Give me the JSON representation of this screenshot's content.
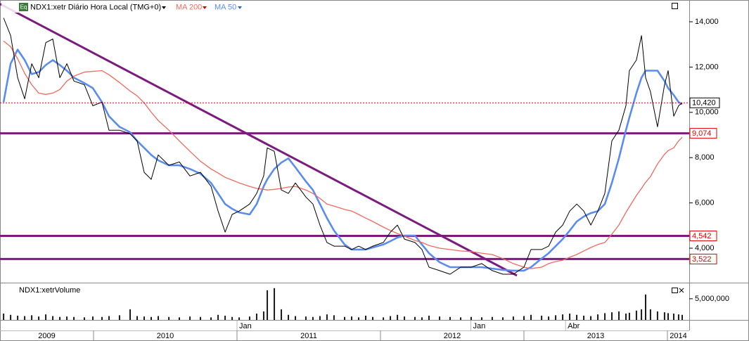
{
  "chart_data": [
    {
      "type": "line",
      "badge": "Eq",
      "title": "NDX1:xetr Diário Hora Local (TMG+0)",
      "x": [
        2009.373,
        2009.422,
        2009.471,
        2009.52,
        2009.569,
        2009.618,
        2009.667,
        2009.716,
        2009.765,
        2009.814,
        2009.863,
        2009.936,
        2009.995,
        2010.059,
        2010.108,
        2010.181,
        2010.255,
        2010.304,
        2010.353,
        2010.402,
        2010.451,
        2010.525,
        2010.598,
        2010.672,
        2010.745,
        2010.819,
        2010.868,
        2010.917,
        2010.966,
        2011.015,
        2011.088,
        2011.137,
        2011.186,
        2011.211,
        2011.26,
        2011.309,
        2011.358,
        2011.407,
        2011.48,
        2011.529,
        2011.578,
        2011.627,
        2011.676,
        2011.75,
        2011.799,
        2011.848,
        2011.897,
        2011.946,
        2012.02,
        2012.069,
        2012.118,
        2012.167,
        2012.24,
        2012.289,
        2012.338,
        2012.412,
        2012.485,
        2012.559,
        2012.632,
        2012.706,
        2012.779,
        2012.853,
        2012.926,
        2013.0,
        2013.049,
        2013.123,
        2013.172,
        2013.221,
        2013.27,
        2013.319,
        2013.368,
        2013.417,
        2013.466,
        2013.515,
        2013.564,
        2013.613,
        2013.662,
        2013.711,
        2013.735,
        2013.784,
        2013.819,
        2013.848,
        2013.882,
        2013.931,
        2013.98,
        2014.005,
        2014.044,
        2014.078,
        2014.103
      ],
      "series": [
        {
          "color": "#000000",
          "values": [
            14170,
            13390,
            11530,
            10600,
            12150,
            11530,
            13080,
            13240,
            11530,
            12150,
            11380,
            11220,
            10290,
            10450,
            9210,
            9210,
            9050,
            8740,
            7350,
            7040,
            8120,
            7660,
            7810,
            7190,
            7350,
            6730,
            5640,
            4710,
            5490,
            5640,
            5950,
            6420,
            7190,
            8430,
            8280,
            6570,
            6420,
            6880,
            6260,
            5950,
            5020,
            4250,
            4090,
            4090,
            3940,
            4090,
            3940,
            4090,
            4250,
            4710,
            5020,
            4400,
            4250,
            3940,
            3160,
            3010,
            2850,
            3160,
            3160,
            3320,
            3010,
            2850,
            2850,
            3160,
            3940,
            3940,
            4090,
            4710,
            5020,
            5640,
            5950,
            5640,
            5020,
            5640,
            6420,
            8740,
            9210,
            10290,
            11840,
            12310,
            13390,
            11530,
            10910,
            9360,
            11220,
            11840,
            9830,
            10290,
            10420
          ]
        },
        {
          "name": "MA 200",
          "color": "#f0695f",
          "values": [
            13150,
            12900,
            12370,
            11720,
            11220,
            10850,
            10790,
            10850,
            11010,
            11380,
            11600,
            11780,
            11810,
            11840,
            11660,
            11320,
            10940,
            10730,
            10420,
            10010,
            9640,
            9210,
            8740,
            8280,
            7840,
            7500,
            7320,
            7130,
            7010,
            6880,
            6730,
            6640,
            6600,
            6570,
            6600,
            6640,
            6700,
            6730,
            6570,
            6420,
            6200,
            5950,
            5860,
            5710,
            5640,
            5490,
            5330,
            5180,
            4930,
            4780,
            4650,
            4530,
            4340,
            4250,
            4120,
            4000,
            3940,
            3880,
            3850,
            3780,
            3720,
            3540,
            3320,
            3160,
            3100,
            3160,
            3320,
            3410,
            3470,
            3600,
            3720,
            3880,
            4030,
            4160,
            4250,
            4620,
            5020,
            5580,
            5830,
            6330,
            6640,
            6910,
            7160,
            7720,
            8150,
            8310,
            8430,
            8740,
            8900
          ]
        },
        {
          "name": "MA 50",
          "color": "#5a8cf0",
          "values": [
            10450,
            12150,
            12770,
            12310,
            11690,
            11780,
            12090,
            12310,
            12090,
            11840,
            11530,
            11290,
            11070,
            10450,
            9830,
            9360,
            9120,
            8740,
            8430,
            8120,
            7880,
            7660,
            7660,
            7500,
            7290,
            6880,
            6420,
            5950,
            5740,
            5580,
            5490,
            5950,
            6730,
            7040,
            7500,
            7780,
            7970,
            7570,
            6950,
            6570,
            5950,
            5330,
            4780,
            4160,
            3940,
            3940,
            3940,
            4030,
            4160,
            4310,
            4470,
            4560,
            4560,
            4160,
            3780,
            3380,
            3160,
            3160,
            3160,
            3160,
            3100,
            3040,
            3010,
            3010,
            3160,
            3540,
            3780,
            4090,
            4400,
            4780,
            5180,
            5400,
            5550,
            5640,
            5950,
            6880,
            7970,
            9210,
            9770,
            10850,
            11530,
            11840,
            11840,
            11840,
            11380,
            11070,
            10760,
            10450,
            10360
          ]
        }
      ],
      "xlim": [
        2009.348,
        2014.152
      ],
      "ylim": [
        2540,
        14900
      ],
      "yticks": [
        {
          "value": 4000,
          "label": "4,000"
        },
        {
          "value": 6000,
          "label": "6,000"
        },
        {
          "value": 8000,
          "label": "8,000"
        },
        {
          "value": 10000,
          "label": "10,000"
        },
        {
          "value": 12000,
          "label": "12,000"
        },
        {
          "value": 14000,
          "label": "14,000"
        }
      ],
      "hline_color": "#7c1a7e",
      "hlines": [
        {
          "value": 9074,
          "label": "9,074"
        },
        {
          "value": 4542,
          "label": "4,542"
        },
        {
          "value": 3522,
          "label": "3,522"
        }
      ],
      "hline_label_color": "#e00000",
      "last_price": {
        "value": 10420,
        "label": "10,420"
      },
      "last_price_color": "#d00000",
      "trendline": {
        "x": [
          2009.348,
          2012.951
        ],
        "y": [
          14790,
          2790
        ]
      }
    },
    {
      "type": "bar",
      "title": "NDX1:xetrVolume",
      "color": "#1a1a1a",
      "x": [
        2009.373,
        2009.422,
        2009.471,
        2009.52,
        2009.569,
        2009.618,
        2009.667,
        2009.716,
        2009.765,
        2009.814,
        2009.863,
        2009.936,
        2009.995,
        2010.059,
        2010.108,
        2010.181,
        2010.255,
        2010.304,
        2010.353,
        2010.402,
        2010.451,
        2010.525,
        2010.598,
        2010.672,
        2010.745,
        2010.819,
        2010.868,
        2010.917,
        2010.966,
        2011.015,
        2011.088,
        2011.137,
        2011.186,
        2011.211,
        2011.26,
        2011.309,
        2011.358,
        2011.407,
        2011.48,
        2011.529,
        2011.578,
        2011.627,
        2011.676,
        2011.75,
        2011.799,
        2011.848,
        2011.897,
        2011.946,
        2012.02,
        2012.069,
        2012.118,
        2012.167,
        2012.24,
        2012.289,
        2012.338,
        2012.412,
        2012.485,
        2012.559,
        2012.632,
        2012.706,
        2012.779,
        2012.853,
        2012.926,
        2013.0,
        2013.049,
        2013.123,
        2013.172,
        2013.221,
        2013.27,
        2013.319,
        2013.368,
        2013.417,
        2013.466,
        2013.515,
        2013.564,
        2013.613,
        2013.662,
        2013.711,
        2013.735,
        2013.784,
        2013.819,
        2013.848,
        2013.882,
        2013.931,
        2013.98,
        2014.005,
        2014.044,
        2014.078,
        2014.103
      ],
      "values": [
        1500000,
        1200000,
        1000000,
        900000,
        1100000,
        800000,
        1300000,
        900000,
        700000,
        800000,
        700000,
        600000,
        800000,
        700000,
        900000,
        1100000,
        2500000,
        900000,
        800000,
        700000,
        900000,
        700000,
        600000,
        800000,
        700000,
        600000,
        1200000,
        1000000,
        700000,
        600000,
        800000,
        1500000,
        2000000,
        7000000,
        7500000,
        2500000,
        1200000,
        900000,
        800000,
        700000,
        900000,
        1300000,
        1100000,
        700000,
        800000,
        600000,
        1000000,
        700000,
        600000,
        900000,
        1200000,
        800000,
        700000,
        600000,
        1000000,
        800000,
        700000,
        600000,
        700000,
        600000,
        700000,
        600000,
        800000,
        900000,
        1200000,
        1000000,
        800000,
        1100000,
        1300000,
        1500000,
        1200000,
        1000000,
        900000,
        1300000,
        1600000,
        1800000,
        2000000,
        1500000,
        1700000,
        2200000,
        2500000,
        6000000,
        2500000,
        2000000,
        1800000,
        1600000,
        1500000,
        1300000,
        1200000
      ],
      "xlim": [
        2009.348,
        2014.152
      ],
      "ylim": [
        0,
        8300000
      ],
      "yticks": [
        {
          "value": 5000000,
          "label": "5,000,000"
        }
      ],
      "xticks": [
        {
          "value": 2009,
          "label": "2009"
        },
        {
          "value": 2010,
          "label": "2010"
        },
        {
          "value": 2011,
          "label": "2011"
        },
        {
          "value": 2012,
          "label": "2012"
        },
        {
          "value": 2013,
          "label": "2013"
        },
        {
          "value": 2014,
          "label": "2014"
        }
      ],
      "xticks_minor": [
        {
          "value": 2011.0,
          "label": "Jan"
        },
        {
          "value": 2012.63,
          "label": "Jan"
        },
        {
          "value": 2013.29,
          "label": "Abr"
        }
      ]
    }
  ]
}
